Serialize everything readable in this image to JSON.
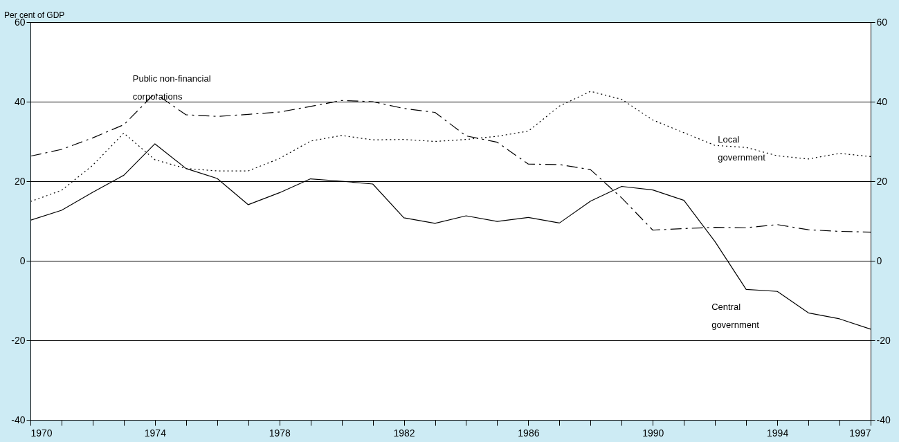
{
  "chart_data": {
    "type": "line",
    "ylabel": "Per cent of GDP",
    "x": [
      1970,
      1971,
      1972,
      1973,
      1974,
      1975,
      1976,
      1977,
      1978,
      1979,
      1980,
      1981,
      1982,
      1983,
      1984,
      1985,
      1986,
      1987,
      1988,
      1989,
      1990,
      1991,
      1992,
      1993,
      1994,
      1995,
      1996,
      1997
    ],
    "series": [
      {
        "color": "#000000",
        "line_style": "solid",
        "values": [
          10.2,
          12.7,
          17.2,
          21.5,
          29.4,
          23.2,
          20.7,
          14.1,
          17.1,
          20.6,
          20.0,
          19.3,
          10.8,
          9.4,
          11.3,
          9.9,
          10.9,
          9.5,
          15.0,
          18.7,
          17.8,
          15.2,
          4.8,
          -7.2,
          -7.7,
          -13.1,
          -14.6,
          -17.2
        ]
      },
      {
        "color": "#000000",
        "line_style": "dotted",
        "values": [
          14.9,
          17.7,
          24.0,
          32.1,
          25.4,
          23.2,
          22.6,
          22.6,
          25.7,
          30.1,
          31.5,
          30.4,
          30.5,
          30.0,
          30.5,
          31.3,
          32.6,
          38.9,
          42.6,
          40.6,
          35.4,
          32.2,
          29.0,
          28.5,
          26.4,
          25.6,
          27.0,
          26.2
        ]
      },
      {
        "color": "#000000",
        "line_style": "dashed",
        "values": [
          26.3,
          28.0,
          30.9,
          34.2,
          42.1,
          36.7,
          36.3,
          36.8,
          37.4,
          38.8,
          40.3,
          40.0,
          38.3,
          37.3,
          31.4,
          29.8,
          24.3,
          24.2,
          22.9,
          15.8,
          7.7,
          8.1,
          8.4,
          8.3,
          9.1,
          7.8,
          7.4,
          7.2
        ]
      }
    ],
    "annotations": [
      {
        "text": "Public non-financial\ncorporations",
        "x": 1974,
        "y": 42.1
      },
      {
        "text": "Local\ngovernment",
        "x": 1992,
        "y": 29.0
      },
      {
        "text": "Central\ngovernment",
        "x": 1993,
        "y": -7.2
      }
    ],
    "xlim": [
      1970,
      1997
    ],
    "xticks": [
      1970,
      {
        "value": 1971,
        "label": null
      },
      {
        "value": 1972,
        "label": null
      },
      {
        "value": 1973,
        "label": null
      },
      1974,
      {
        "value": 1975,
        "label": null
      },
      {
        "value": 1976,
        "label": null
      },
      {
        "value": 1977,
        "label": null
      },
      1978,
      {
        "value": 1979,
        "label": null
      },
      {
        "value": 1980,
        "label": null
      },
      {
        "value": 1981,
        "label": null
      },
      1982,
      {
        "value": 1983,
        "label": null
      },
      {
        "value": 1984,
        "label": null
      },
      {
        "value": 1985,
        "label": null
      },
      1986,
      {
        "value": 1987,
        "label": null
      },
      {
        "value": 1988,
        "label": null
      },
      {
        "value": 1989,
        "label": null
      },
      1990,
      {
        "value": 1991,
        "label": null
      },
      {
        "value": 1992,
        "label": null
      },
      {
        "value": 1993,
        "label": null
      },
      1994,
      {
        "value": 1995,
        "label": null
      },
      {
        "value": 1996,
        "label": null
      },
      1997
    ],
    "ylim": [
      -40,
      60
    ],
    "yticks": [
      -40,
      -20,
      0,
      20,
      40,
      60
    ],
    "y2lim": [
      -40,
      60
    ],
    "y2ticks": [
      -40,
      -20,
      0,
      20,
      40,
      60
    ],
    "grid": "y"
  }
}
